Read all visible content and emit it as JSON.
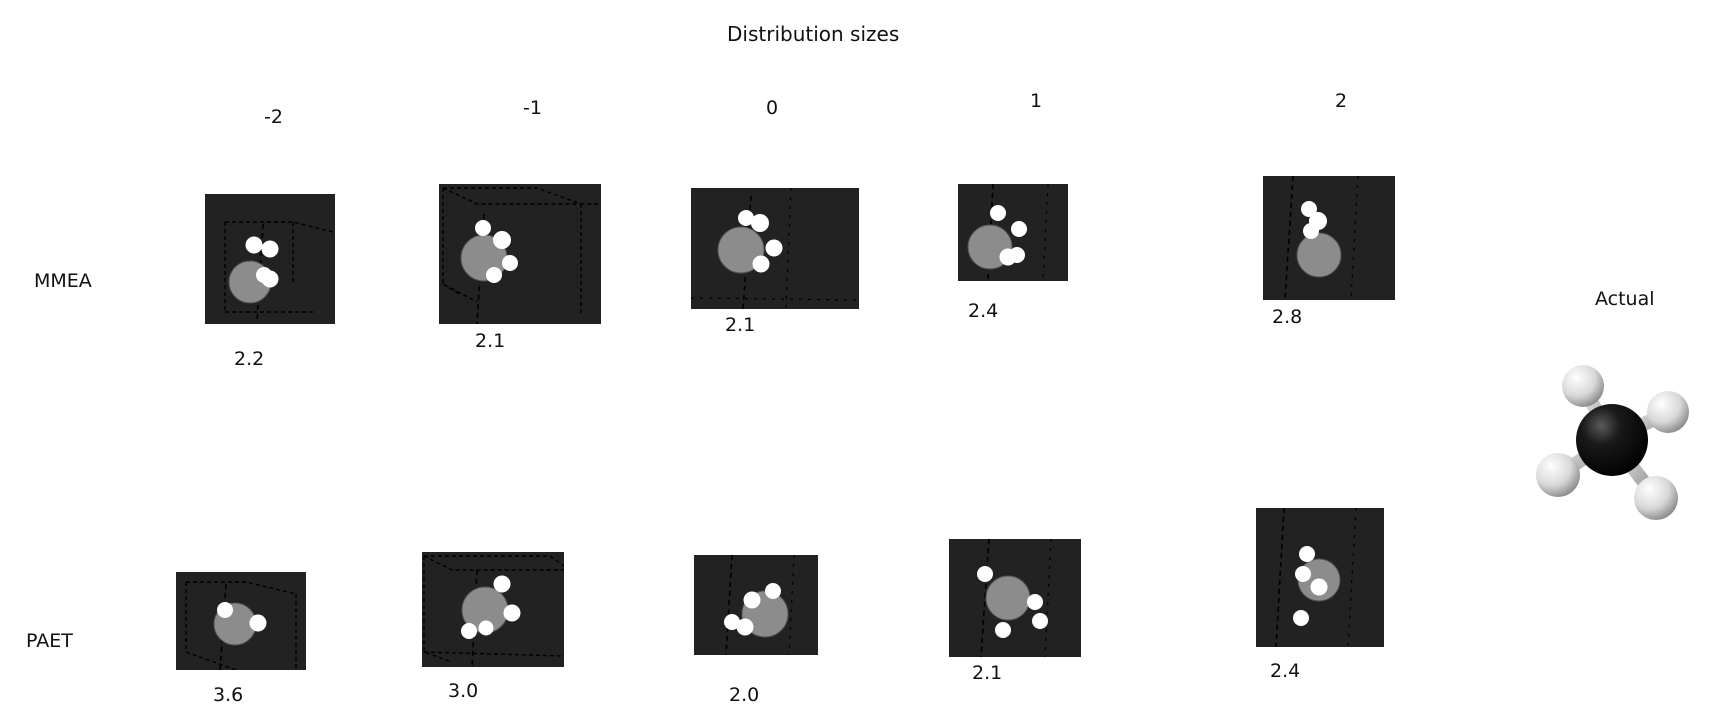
{
  "title": "Distribution sizes",
  "columns": [
    "-2",
    "-1",
    "0",
    "1",
    "2"
  ],
  "rows": [
    "MMEA",
    "PAET"
  ],
  "values": {
    "MMEA": [
      "2.2",
      "2.1",
      "2.1",
      "2.4",
      "2.8"
    ],
    "PAET": [
      "3.6",
      "3.0",
      "2.0",
      "2.1",
      "2.4"
    ]
  },
  "actual_label": "Actual",
  "colors": {
    "panel_bg": "#222222",
    "carbon_sim": "#8c8c8c",
    "hydrogen": "#ffffff",
    "carbon_actual": "#111111"
  }
}
